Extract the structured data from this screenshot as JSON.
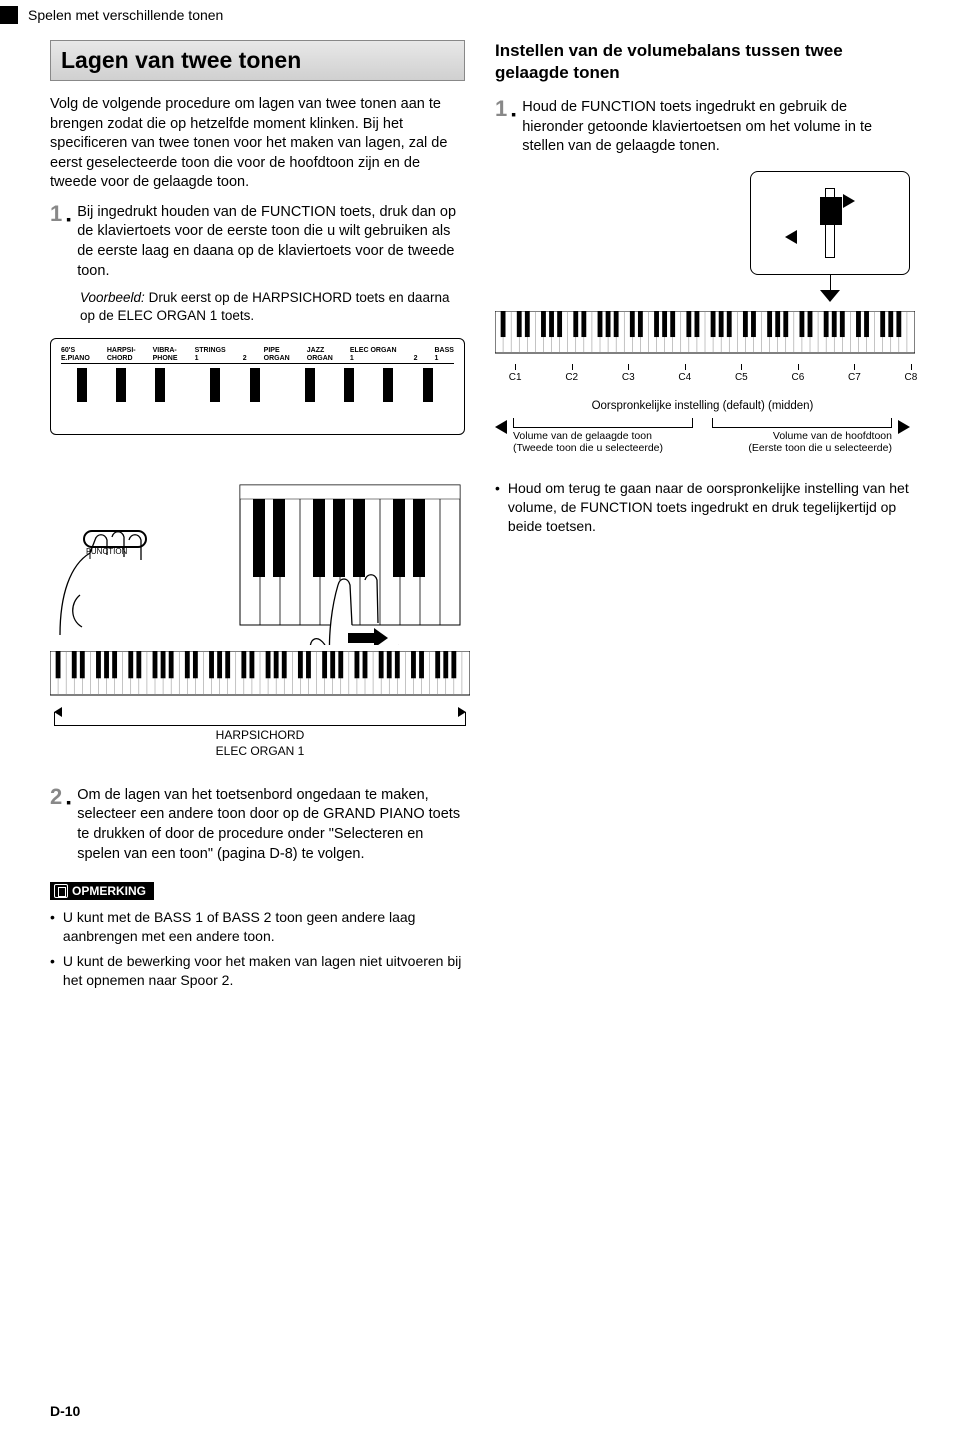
{
  "header": {
    "title": "Spelen met verschillende tonen"
  },
  "left": {
    "section_title": "Lagen van twee tonen",
    "intro": "Volg de volgende procedure om lagen van twee tonen aan te brengen zodat die op hetzelfde moment klinken. Bij het specificeren van twee tonen voor het maken van lagen, zal de eerst geselecteerde toon die voor de hoofdtoon zijn en de tweede voor de gelaagde toon.",
    "step1_num": "1",
    "step1": "Bij ingedrukt houden van de FUNCTION toets, druk dan op de klaviertoets voor de eerste toon die u wilt gebruiken als de eerste laag en daana op de klaviertoets voor de tweede toon.",
    "example_label": "Voorbeeld:",
    "example": "Druk eerst op de HARPSICHORD toets en daarna op de ELEC ORGAN 1 toets.",
    "tones": [
      "60'S\nE.PIANO",
      "HARPSI-\nCHORD",
      "VIBRA-\nPHONE",
      "STRINGS\n1",
      "\n2",
      "PIPE\nORGAN",
      "JAZZ\nORGAN",
      "ELEC ORGAN\n1",
      "\n2",
      "BASS\n1"
    ],
    "function_label": "FUNCTION",
    "range1": "HARPSICHORD",
    "range2": "ELEC ORGAN 1",
    "step2_num": "2",
    "step2": "Om de lagen van het toetsenbord ongedaan te maken, selecteer een andere toon door op de GRAND PIANO toets te drukken of door de procedure onder \"Selecteren en spelen van een toon\" (pagina D-8) te volgen.",
    "note_badge": "OPMERKING",
    "note1": "U kunt met de BASS 1 of BASS 2 toon geen andere laag aanbrengen met een andere toon.",
    "note2": "U kunt de bewerking voor het maken van lagen niet uitvoeren bij het opnemen naar Spoor 2."
  },
  "right": {
    "subheading": "Instellen van de volumebalans tussen twee gelaagde tonen",
    "step1_num": "1",
    "step1": "Houd de FUNCTION toets ingedrukt en gebruik de hieronder getoonde klaviertoetsen om het volume in te stellen van de gelaagde tonen.",
    "c_labels": [
      "C1",
      "C2",
      "C3",
      "C4",
      "C5",
      "C6",
      "C7",
      "C8"
    ],
    "default_label": "Oorspronkelijke instelling (default) (midden)",
    "vol_left_1": "Volume van de gelaagde toon",
    "vol_left_2": "(Tweede toon die u selecteerde)",
    "vol_right_1": "Volume van de hoofdtoon",
    "vol_right_2": "(Eerste toon die u selecteerde)",
    "bullet1": "Houd om terug te gaan naar de oorspronkelijke instelling van het volume, de FUNCTION toets ingedrukt en druk tegelijkertijd op beide toetsen."
  },
  "page_number": "D-10",
  "colors": {
    "title_bg_top": "#e8e8e8",
    "title_bg_bottom": "#d0d0d0",
    "step_num": "#888888",
    "text": "#000000",
    "bg": "#ffffff"
  }
}
